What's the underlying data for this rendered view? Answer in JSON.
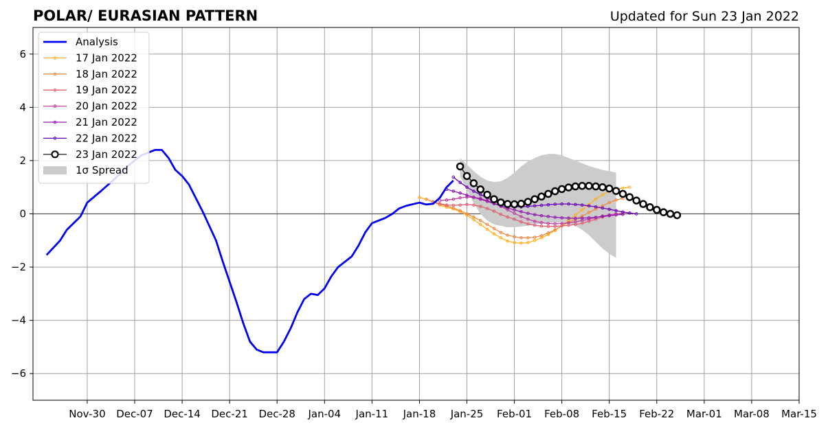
{
  "chart_data": {
    "type": "line",
    "title": "POLAR/ EURASIAN  PATTERN",
    "subtitle": "Updated for Sun 23 Jan 2022",
    "xlabel": "",
    "ylabel": "",
    "xlim": [
      "2021-11-22",
      "2022-03-15"
    ],
    "ylim": [
      -7,
      7
    ],
    "grid": true,
    "legend_position": "top-left",
    "x_ticks": [
      "Nov-30",
      "Dec-07",
      "Dec-14",
      "Dec-21",
      "Dec-28",
      "Jan-04",
      "Jan-11",
      "Jan-18",
      "Jan-25",
      "Feb-01",
      "Feb-08",
      "Feb-15",
      "Feb-22",
      "Mar-01",
      "Mar-08",
      "Mar-15"
    ],
    "y_ticks": [
      "6",
      "4",
      "2",
      "0",
      "−2",
      "−4",
      "−6"
    ],
    "analysis": {
      "name": "Analysis",
      "color": "#0000ee",
      "points": [
        [
          "2021-11-24",
          -1.55
        ],
        [
          "2021-11-26",
          -1.0
        ],
        [
          "2021-11-27",
          -0.6
        ],
        [
          "2021-11-29",
          -0.1
        ],
        [
          "2021-11-30",
          0.42
        ],
        [
          "2021-12-02",
          0.85
        ],
        [
          "2021-12-04",
          1.3
        ],
        [
          "2021-12-06",
          1.8
        ],
        [
          "2021-12-08",
          2.2
        ],
        [
          "2021-12-10",
          2.4
        ],
        [
          "2021-12-11",
          2.4
        ],
        [
          "2021-12-12",
          2.1
        ],
        [
          "2021-12-13",
          1.65
        ],
        [
          "2021-12-14",
          1.42
        ],
        [
          "2021-12-15",
          1.1
        ],
        [
          "2021-12-17",
          0.1
        ],
        [
          "2021-12-19",
          -1.0
        ],
        [
          "2021-12-20",
          -1.8
        ],
        [
          "2021-12-22",
          -3.3
        ],
        [
          "2021-12-23",
          -4.1
        ],
        [
          "2021-12-24",
          -4.8
        ],
        [
          "2021-12-25",
          -5.1
        ],
        [
          "2021-12-26",
          -5.2
        ],
        [
          "2021-12-27",
          -5.2
        ],
        [
          "2021-12-28",
          -5.2
        ],
        [
          "2021-12-29",
          -4.8
        ],
        [
          "2021-12-30",
          -4.3
        ],
        [
          "2021-12-31",
          -3.7
        ],
        [
          "2022-01-01",
          -3.2
        ],
        [
          "2022-01-02",
          -3.0
        ],
        [
          "2022-01-03",
          -3.05
        ],
        [
          "2022-01-04",
          -2.8
        ],
        [
          "2022-01-05",
          -2.35
        ],
        [
          "2022-01-06",
          -2.0
        ],
        [
          "2022-01-08",
          -1.6
        ],
        [
          "2022-01-09",
          -1.2
        ],
        [
          "2022-01-10",
          -0.7
        ],
        [
          "2022-01-11",
          -0.35
        ],
        [
          "2022-01-13",
          -0.15
        ],
        [
          "2022-01-14",
          0.0
        ],
        [
          "2022-01-15",
          0.2
        ],
        [
          "2022-01-16",
          0.3
        ],
        [
          "2022-01-18",
          0.42
        ],
        [
          "2022-01-19",
          0.35
        ],
        [
          "2022-01-20",
          0.38
        ],
        [
          "2022-01-21",
          0.6
        ],
        [
          "2022-01-22",
          1.0
        ],
        [
          "2022-01-23",
          1.25
        ]
      ]
    },
    "spread": {
      "name": "1σ Spread",
      "color": "#cccccc",
      "start": "2022-01-24",
      "upper": [
        2.1,
        1.85,
        1.6,
        1.4,
        1.25,
        1.2,
        1.22,
        1.35,
        1.55,
        1.78,
        1.97,
        2.1,
        2.2,
        2.25,
        2.25,
        2.2,
        2.1,
        2.0,
        1.9,
        1.8,
        1.72,
        1.65,
        1.6,
        1.55
      ],
      "lower": [
        1.4,
        0.9,
        0.4,
        0.0,
        -0.25,
        -0.4,
        -0.45,
        -0.5,
        -0.5,
        -0.48,
        -0.44,
        -0.4,
        -0.36,
        -0.34,
        -0.32,
        -0.32,
        -0.36,
        -0.45,
        -0.6,
        -0.8,
        -1.05,
        -1.3,
        -1.5,
        -1.65
      ]
    },
    "series": [
      {
        "name": "17 Jan 2022",
        "color": "#ffb020",
        "start": "2022-01-18",
        "values": [
          0.62,
          0.55,
          0.45,
          0.33,
          0.25,
          0.18,
          0.08,
          -0.05,
          -0.22,
          -0.4,
          -0.58,
          -0.75,
          -0.9,
          -1.02,
          -1.08,
          -1.1,
          -1.08,
          -1.0,
          -0.9,
          -0.78,
          -0.62,
          -0.45,
          -0.25,
          -0.05,
          0.15,
          0.35,
          0.55,
          0.72,
          0.85,
          0.92,
          0.97,
          1.0
        ]
      },
      {
        "name": "18 Jan 2022",
        "color": "#f08a40",
        "start": "2022-01-19",
        "values": [
          0.55,
          0.45,
          0.37,
          0.3,
          0.22,
          0.12,
          0.0,
          -0.12,
          -0.25,
          -0.4,
          -0.55,
          -0.7,
          -0.8,
          -0.86,
          -0.9,
          -0.9,
          -0.88,
          -0.82,
          -0.72,
          -0.6,
          -0.45,
          -0.32,
          -0.2,
          -0.08,
          0.05,
          0.18,
          0.3,
          0.42,
          0.52,
          0.58
        ]
      },
      {
        "name": "19 Jan 2022",
        "color": "#e06070",
        "start": "2022-01-20",
        "values": [
          0.45,
          0.38,
          0.33,
          0.32,
          0.33,
          0.35,
          0.33,
          0.28,
          0.2,
          0.1,
          -0.02,
          -0.12,
          -0.2,
          -0.3,
          -0.38,
          -0.43,
          -0.46,
          -0.47,
          -0.47,
          -0.45,
          -0.43,
          -0.4,
          -0.35,
          -0.28,
          -0.2,
          -0.12,
          -0.05,
          0.0,
          0.02
        ]
      },
      {
        "name": "20 Jan 2022",
        "color": "#c040a0",
        "start": "2022-01-21",
        "values": [
          0.5,
          0.52,
          0.55,
          0.6,
          0.63,
          0.62,
          0.58,
          0.5,
          0.4,
          0.28,
          0.15,
          0.02,
          -0.1,
          -0.2,
          -0.28,
          -0.33,
          -0.36,
          -0.37,
          -0.36,
          -0.34,
          -0.3,
          -0.25,
          -0.2,
          -0.14,
          -0.08,
          -0.04,
          0.0,
          0.02
        ]
      },
      {
        "name": "21 Jan 2022",
        "color": "#9018b0",
        "start": "2022-01-22",
        "values": [
          0.92,
          0.85,
          0.78,
          0.7,
          0.62,
          0.55,
          0.47,
          0.38,
          0.3,
          0.22,
          0.15,
          0.08,
          0.02,
          -0.03,
          -0.07,
          -0.1,
          -0.13,
          -0.15,
          -0.16,
          -0.17,
          -0.16,
          -0.15,
          -0.13,
          -0.1,
          -0.07,
          -0.04,
          -0.02
        ]
      },
      {
        "name": "22 Jan 2022",
        "color": "#6a00b8",
        "start": "2022-01-23",
        "values": [
          1.38,
          1.18,
          1.0,
          0.85,
          0.72,
          0.6,
          0.48,
          0.38,
          0.3,
          0.27,
          0.26,
          0.28,
          0.3,
          0.32,
          0.34,
          0.36,
          0.37,
          0.37,
          0.35,
          0.33,
          0.3,
          0.26,
          0.22,
          0.17,
          0.12,
          0.07,
          0.03,
          0.0
        ]
      },
      {
        "name": "23 Jan 2022",
        "color": "#000000",
        "start": "2022-01-24",
        "values": [
          1.78,
          1.42,
          1.15,
          0.92,
          0.72,
          0.55,
          0.43,
          0.37,
          0.36,
          0.38,
          0.45,
          0.55,
          0.65,
          0.75,
          0.85,
          0.93,
          0.99,
          1.03,
          1.05,
          1.05,
          1.03,
          1.0,
          0.95,
          0.86,
          0.75,
          0.63,
          0.5,
          0.37,
          0.25,
          0.15,
          0.06,
          0.0,
          -0.05
        ]
      }
    ]
  },
  "legend": {
    "position": "top-left",
    "items": [
      {
        "label": "Analysis",
        "kind": "thick-line",
        "color": "#0000ee"
      },
      {
        "label": "17 Jan 2022",
        "kind": "small-marker",
        "color": "#ffb020"
      },
      {
        "label": "18 Jan 2022",
        "kind": "small-marker",
        "color": "#f08a40"
      },
      {
        "label": "19 Jan 2022",
        "kind": "small-marker",
        "color": "#e06070"
      },
      {
        "label": "20 Jan 2022",
        "kind": "small-marker",
        "color": "#c040a0"
      },
      {
        "label": "21 Jan 2022",
        "kind": "small-marker",
        "color": "#9018b0"
      },
      {
        "label": "22 Jan 2022",
        "kind": "small-marker",
        "color": "#6a00b8"
      },
      {
        "label": "23 Jan 2022",
        "kind": "big-marker",
        "color": "#000000"
      },
      {
        "label": "1σ Spread",
        "kind": "patch",
        "color": "#cccccc"
      }
    ]
  }
}
